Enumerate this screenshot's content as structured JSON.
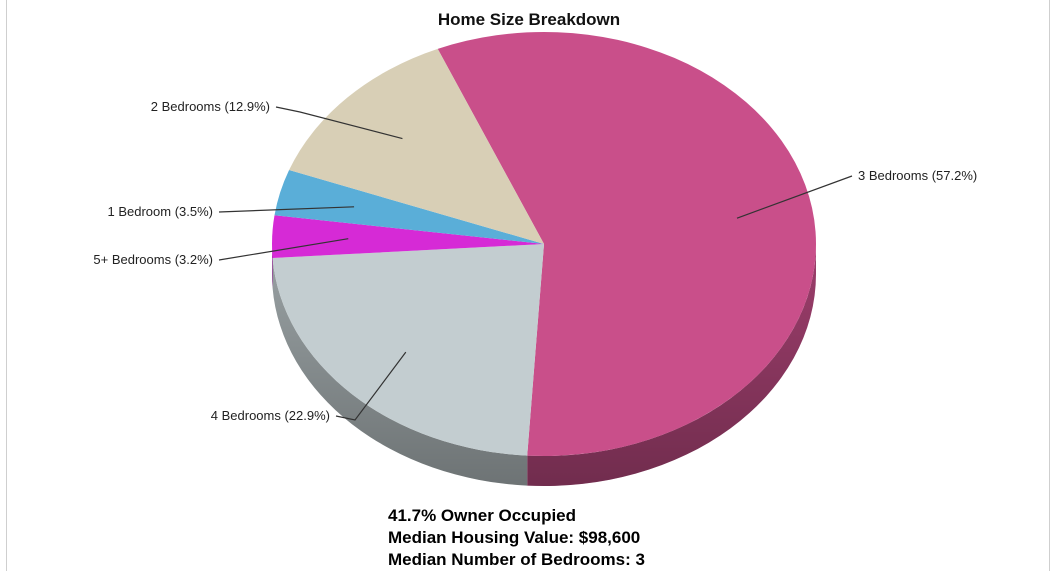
{
  "chart_data": {
    "type": "pie",
    "title": "Home Size Breakdown",
    "slices": [
      {
        "label": "3 Bedrooms (57.2%)",
        "value": 57.2,
        "color": "#c94f8a"
      },
      {
        "label": "4 Bedrooms (22.9%)",
        "value": 22.9,
        "color": "#c3cdd0"
      },
      {
        "label": "5+ Bedrooms (3.2%)",
        "value": 3.2,
        "color": "#d62ad6"
      },
      {
        "label": "1 Bedroom (3.5%)",
        "value": 3.5,
        "color": "#5aaed8"
      },
      {
        "label": "2 Bedrooms (12.9%)",
        "value": 12.9,
        "color": "#d8cfb6"
      }
    ],
    "legend": "none",
    "style": "3d"
  },
  "stats": {
    "owner_occupied": "41.7% Owner Occupied",
    "median_value": "Median Housing Value: $98,600",
    "median_bedrooms": "Median Number of Bedrooms: 3"
  }
}
